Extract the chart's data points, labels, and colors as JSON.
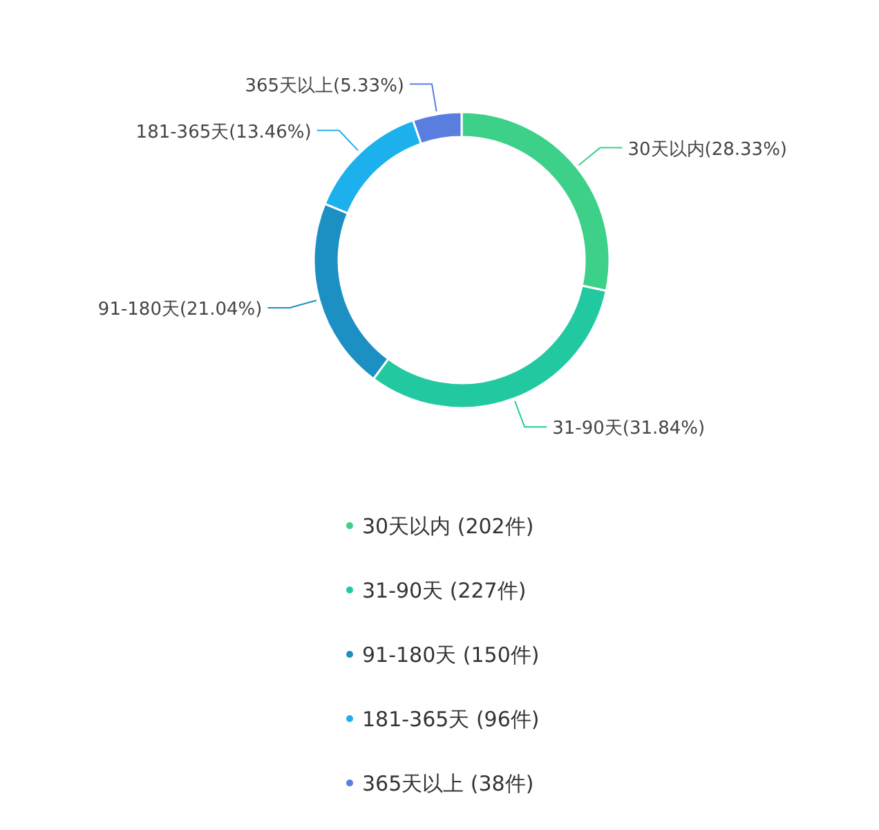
{
  "chart_data": {
    "type": "donut",
    "categories": [
      "30天以内",
      "31-90天",
      "91-180天",
      "181-365天",
      "365天以上"
    ],
    "values": [
      28.33,
      31.84,
      21.04,
      13.46,
      5.33
    ],
    "value_labels": [
      "(28.33%)",
      "(31.84%)",
      "(21.04%)",
      "(13.46%)",
      "(5.33%)"
    ],
    "colors": [
      "#3dd089",
      "#22c9a0",
      "#1c8fc3",
      "#1cb1ec",
      "#5a7de0"
    ],
    "annotations": [
      "(202件)",
      "(227件)",
      "(150件)",
      "(96件)",
      "(38件)"
    ]
  }
}
